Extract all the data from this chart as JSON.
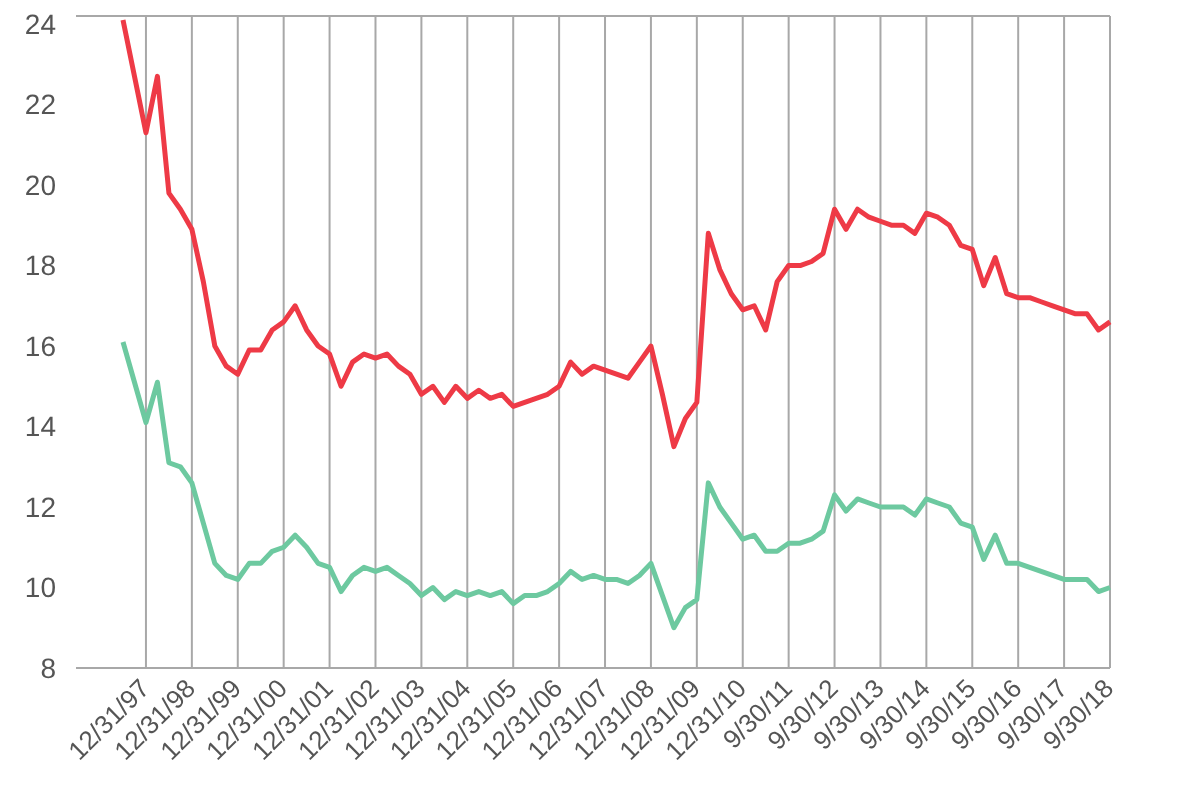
{
  "chart_data": {
    "type": "line",
    "categories": [
      null,
      null,
      "12/31/97",
      null,
      null,
      null,
      "12/31/98",
      null,
      null,
      null,
      "12/31/99",
      null,
      null,
      null,
      "12/31/00",
      null,
      null,
      null,
      "12/31/01",
      null,
      null,
      null,
      "12/31/02",
      null,
      null,
      null,
      "12/31/03",
      null,
      null,
      null,
      "12/31/04",
      null,
      null,
      null,
      "12/31/05",
      null,
      null,
      null,
      "12/31/06",
      null,
      null,
      null,
      "12/31/07",
      null,
      null,
      null,
      "12/31/08",
      null,
      null,
      null,
      "12/31/09",
      null,
      null,
      null,
      "12/31/10",
      null,
      null,
      null,
      "9/30/11",
      null,
      null,
      null,
      "9/30/12",
      null,
      null,
      null,
      "9/30/13",
      null,
      null,
      null,
      "9/30/14",
      null,
      null,
      null,
      "9/30/15",
      null,
      null,
      null,
      "9/30/16",
      null,
      null,
      null,
      "9/30/17",
      null,
      null,
      null,
      "9/30/18"
    ],
    "series": [
      {
        "color": "#ee3a46",
        "values": [
          24.1,
          22.7,
          21.3,
          22.7,
          19.8,
          19.4,
          18.9,
          17.6,
          16.0,
          15.5,
          15.3,
          15.9,
          15.9,
          16.4,
          16.6,
          17.0,
          16.4,
          16.0,
          15.8,
          15.0,
          15.6,
          15.8,
          15.7,
          15.8,
          15.5,
          15.3,
          14.8,
          15.0,
          14.6,
          15.0,
          14.7,
          14.9,
          14.7,
          14.8,
          14.5,
          14.6,
          14.7,
          14.8,
          15.0,
          15.6,
          15.3,
          15.5,
          15.4,
          15.3,
          15.2,
          15.6,
          16.0,
          14.8,
          13.5,
          14.2,
          14.6,
          18.8,
          17.9,
          17.3,
          16.9,
          17.0,
          16.4,
          17.6,
          18.0,
          18.0,
          18.1,
          18.3,
          19.4,
          18.9,
          19.4,
          19.2,
          19.1,
          19.0,
          19.0,
          18.8,
          19.3,
          19.2,
          19.0,
          18.5,
          18.4,
          17.5,
          18.2,
          17.3,
          17.2,
          17.2,
          17.1,
          17.0,
          16.9,
          16.8,
          16.8,
          16.4,
          16.6
        ]
      },
      {
        "color": "#6dc9a0",
        "values": [
          16.1,
          15.1,
          14.1,
          15.1,
          13.1,
          13.0,
          12.6,
          11.6,
          10.6,
          10.3,
          10.2,
          10.6,
          10.6,
          10.9,
          11.0,
          11.3,
          11.0,
          10.6,
          10.5,
          9.9,
          10.3,
          10.5,
          10.4,
          10.5,
          10.3,
          10.1,
          9.8,
          10.0,
          9.7,
          9.9,
          9.8,
          9.9,
          9.8,
          9.9,
          9.6,
          9.8,
          9.8,
          9.9,
          10.1,
          10.4,
          10.2,
          10.3,
          10.2,
          10.2,
          10.1,
          10.3,
          10.6,
          9.8,
          9.0,
          9.5,
          9.7,
          12.6,
          12.0,
          11.6,
          11.2,
          11.3,
          10.9,
          10.9,
          11.1,
          11.1,
          11.2,
          11.4,
          12.3,
          11.9,
          12.2,
          12.1,
          12.0,
          12.0,
          12.0,
          11.8,
          12.2,
          12.1,
          12.0,
          11.6,
          11.5,
          10.7,
          11.3,
          10.6,
          10.6,
          10.5,
          10.4,
          10.3,
          10.2,
          10.2,
          10.2,
          9.9,
          10.0
        ]
      }
    ],
    "ylim": [
      8,
      24.2
    ],
    "yticks": [
      8,
      10,
      12,
      14,
      16,
      18,
      20,
      22,
      24
    ],
    "grid": true,
    "marker": "none",
    "line_style": "solid"
  }
}
